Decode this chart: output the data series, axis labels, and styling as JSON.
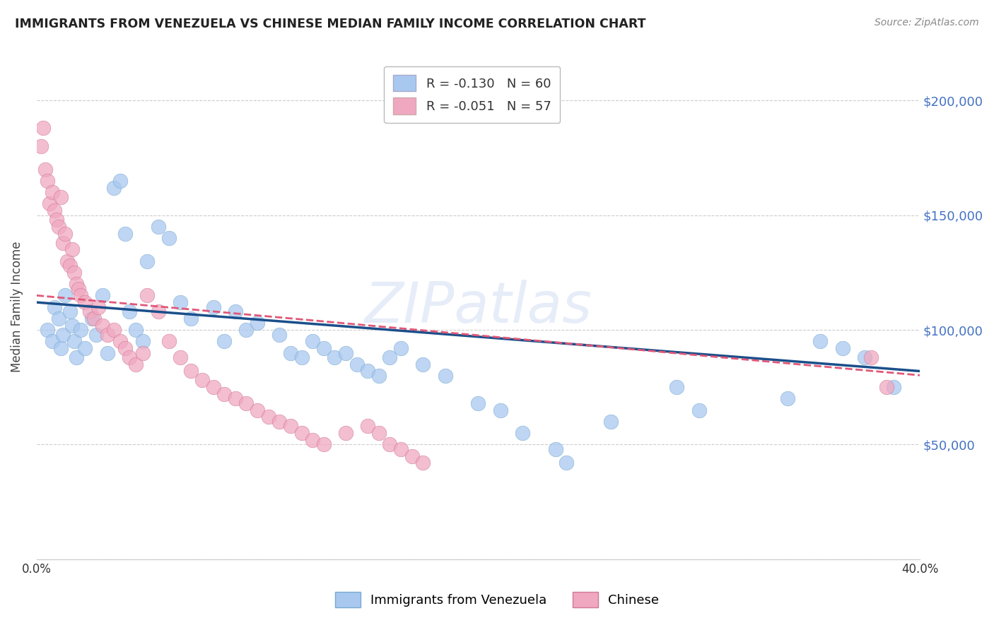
{
  "title": "IMMIGRANTS FROM VENEZUELA VS CHINESE MEDIAN FAMILY INCOME CORRELATION CHART",
  "source": "Source: ZipAtlas.com",
  "ylabel": "Median Family Income",
  "xlim": [
    0.0,
    0.4
  ],
  "ylim": [
    0,
    220000
  ],
  "legend1_label": "R = -0.130   N = 60",
  "legend2_label": "R = -0.051   N = 57",
  "line1_color": "#1a4f8a",
  "line2_color": "#e05878",
  "watermark": "ZIPatlas",
  "blue_scatter_x": [
    0.005,
    0.007,
    0.008,
    0.01,
    0.011,
    0.012,
    0.013,
    0.015,
    0.016,
    0.017,
    0.018,
    0.02,
    0.022,
    0.025,
    0.027,
    0.03,
    0.032,
    0.035,
    0.038,
    0.04,
    0.042,
    0.045,
    0.048,
    0.05,
    0.055,
    0.06,
    0.065,
    0.07,
    0.08,
    0.085,
    0.09,
    0.095,
    0.1,
    0.11,
    0.115,
    0.12,
    0.125,
    0.13,
    0.135,
    0.14,
    0.145,
    0.15,
    0.155,
    0.16,
    0.165,
    0.175,
    0.185,
    0.2,
    0.21,
    0.22,
    0.235,
    0.24,
    0.26,
    0.29,
    0.3,
    0.34,
    0.355,
    0.365,
    0.375,
    0.388
  ],
  "blue_scatter_y": [
    100000,
    95000,
    110000,
    105000,
    92000,
    98000,
    115000,
    108000,
    102000,
    95000,
    88000,
    100000,
    92000,
    105000,
    98000,
    115000,
    90000,
    162000,
    165000,
    142000,
    108000,
    100000,
    95000,
    130000,
    145000,
    140000,
    112000,
    105000,
    110000,
    95000,
    108000,
    100000,
    103000,
    98000,
    90000,
    88000,
    95000,
    92000,
    88000,
    90000,
    85000,
    82000,
    80000,
    88000,
    92000,
    85000,
    80000,
    68000,
    65000,
    55000,
    48000,
    42000,
    60000,
    75000,
    65000,
    70000,
    95000,
    92000,
    88000,
    75000
  ],
  "pink_scatter_x": [
    0.002,
    0.003,
    0.004,
    0.005,
    0.006,
    0.007,
    0.008,
    0.009,
    0.01,
    0.011,
    0.012,
    0.013,
    0.014,
    0.015,
    0.016,
    0.017,
    0.018,
    0.019,
    0.02,
    0.022,
    0.024,
    0.026,
    0.028,
    0.03,
    0.032,
    0.035,
    0.038,
    0.04,
    0.042,
    0.045,
    0.048,
    0.05,
    0.055,
    0.06,
    0.065,
    0.07,
    0.075,
    0.08,
    0.085,
    0.09,
    0.095,
    0.1,
    0.105,
    0.11,
    0.115,
    0.12,
    0.125,
    0.13,
    0.14,
    0.15,
    0.155,
    0.16,
    0.165,
    0.17,
    0.175,
    0.378,
    0.385
  ],
  "pink_scatter_y": [
    180000,
    188000,
    170000,
    165000,
    155000,
    160000,
    152000,
    148000,
    145000,
    158000,
    138000,
    142000,
    130000,
    128000,
    135000,
    125000,
    120000,
    118000,
    115000,
    112000,
    108000,
    105000,
    110000,
    102000,
    98000,
    100000,
    95000,
    92000,
    88000,
    85000,
    90000,
    115000,
    108000,
    95000,
    88000,
    82000,
    78000,
    75000,
    72000,
    70000,
    68000,
    65000,
    62000,
    60000,
    58000,
    55000,
    52000,
    50000,
    55000,
    58000,
    55000,
    50000,
    48000,
    45000,
    42000,
    88000,
    75000
  ],
  "background_color": "#ffffff",
  "grid_color": "#cccccc",
  "right_tick_color": "#4472c4"
}
